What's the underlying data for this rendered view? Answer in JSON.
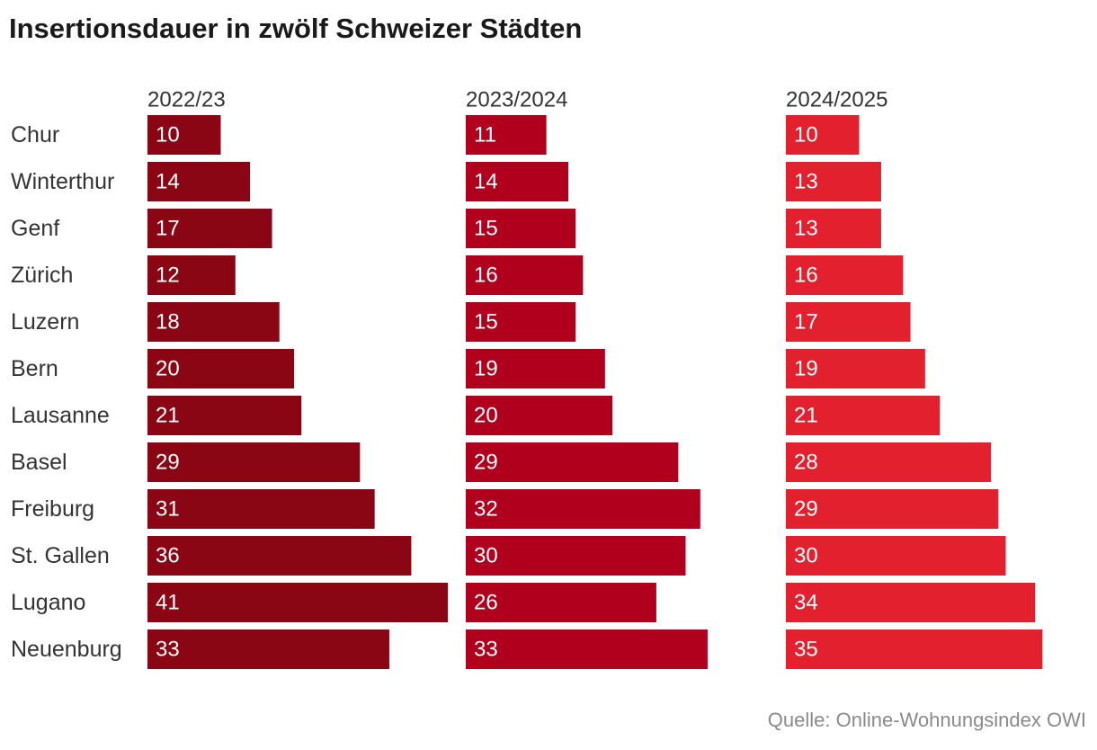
{
  "title": "Insertionsdauer in zwölf Schweizer Städten",
  "source": "Quelle: Online-Wohnungsindex OWI",
  "chart_data": {
    "type": "bar",
    "orientation": "horizontal",
    "layout": "small-multiples",
    "title": "Insertionsdauer in zwölf Schweizer Städten",
    "categories": [
      "Chur",
      "Winterthur",
      "Genf",
      "Zürich",
      "Luzern",
      "Bern",
      "Lausanne",
      "Basel",
      "Freiburg",
      "St. Gallen",
      "Lugano",
      "Neuenburg"
    ],
    "series": [
      {
        "name": "2022/23",
        "color": "#8b0615",
        "values": [
          10,
          14,
          17,
          12,
          18,
          20,
          21,
          29,
          31,
          36,
          41,
          33
        ]
      },
      {
        "name": "2023/2024",
        "color": "#b0001e",
        "values": [
          11,
          14,
          15,
          16,
          15,
          19,
          20,
          29,
          32,
          30,
          26,
          33
        ]
      },
      {
        "name": "2024/2025",
        "color": "#e2202e",
        "values": [
          10,
          13,
          13,
          16,
          17,
          19,
          21,
          28,
          29,
          30,
          34,
          35
        ]
      }
    ],
    "xlim": [
      0,
      41
    ],
    "data_labels": "inside-left",
    "grid": false,
    "legend": "none"
  }
}
